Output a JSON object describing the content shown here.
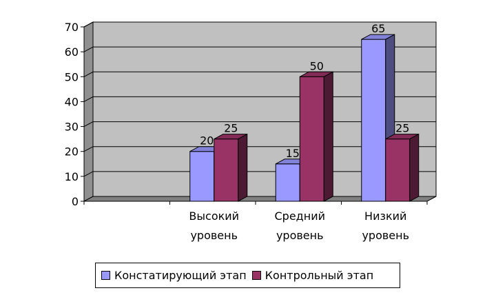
{
  "chart_data": {
    "type": "bar",
    "style": "3d-clustered-column",
    "categories": [
      [
        "",
        ""
      ],
      [
        "Высокий",
        "уровень"
      ],
      [
        "Средний",
        "уровень"
      ],
      [
        "Низкий",
        "уровень"
      ]
    ],
    "series": [
      {
        "name": "Констатирующий этап",
        "values": [
          null,
          20,
          15,
          65
        ],
        "color": "#9999ff"
      },
      {
        "name": "Контрольный этап",
        "values": [
          null,
          25,
          50,
          25
        ],
        "color": "#993366"
      }
    ],
    "data_labels": [
      [
        "",
        "20",
        "15",
        "65"
      ],
      [
        "",
        "25",
        "50",
        "25"
      ]
    ],
    "yticks": [
      "0",
      "10",
      "20",
      "30",
      "40",
      "50",
      "60",
      "70"
    ],
    "ylim": [
      0,
      70
    ],
    "grid": true,
    "legend_position": "bottom",
    "title": "",
    "xlabel": "",
    "ylabel": "",
    "colors": {
      "wall": "#c0c0c0",
      "floor": "#808080",
      "grid": "#000000"
    }
  }
}
